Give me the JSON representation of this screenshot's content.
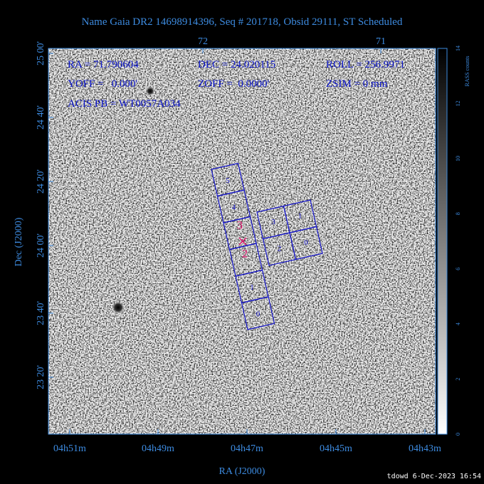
{
  "header": {
    "title": "Name Gaia DR2 14698914396, Seq # 201718, Obsid 29111, ST Scheduled"
  },
  "info": [
    "RA = 71.790604",
    "DEC = 24.020115",
    "ROLL = 256.9971",
    "YOFF =   0.000'",
    "ZOFF =  0.0000'",
    "ZSIM = 0 mm",
    "ACIS PB = WT0057A034"
  ],
  "top_axis": [
    "72",
    "71"
  ],
  "left_axis": {
    "label": "Dec (J2000)",
    "ticks": [
      "25 00'",
      "24 40'",
      "24 20'",
      "24 00'",
      "23 40'",
      "23 20'"
    ]
  },
  "bottom_axis": {
    "label": "RA (J2000)",
    "ticks": [
      "04h51m",
      "04h49m",
      "04h47m",
      "04h45m",
      "04h43m"
    ]
  },
  "colorbar": {
    "label": "RASS counts",
    "ticks": [
      "0",
      "2",
      "4",
      "6",
      "8",
      "10",
      "12",
      "14"
    ]
  },
  "acis_s_chips": [
    "5",
    "4",
    "1",
    "0"
  ],
  "acis_i_chips": [
    "3",
    "1",
    "2",
    "0"
  ],
  "aimpoint_labels": [
    "3",
    "2"
  ],
  "footer": "tdowd  6-Dec-2023 16:54"
}
